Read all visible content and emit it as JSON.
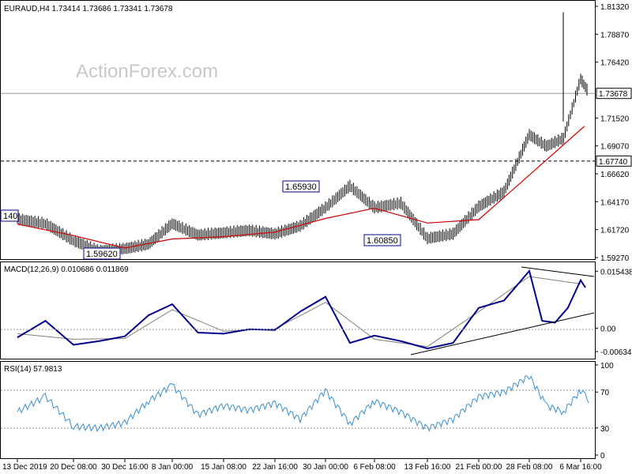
{
  "chart_data": [
    {
      "type": "line",
      "title": "EURAUD,H4  1.73414 1.73686 1.73341 1.73678",
      "symbol": "EURAUD",
      "timeframe": "H4",
      "ohlc": {
        "open": 1.73414,
        "high": 1.73686,
        "low": 1.73341,
        "close": 1.73678
      },
      "ylim": [
        1.5927,
        1.8132
      ],
      "y_ticks": [
        "1.81320",
        "1.78870",
        "1.76420",
        "1.71520",
        "1.69070",
        "1.66620",
        "1.64170",
        "1.61720",
        "1.59270"
      ],
      "current_price_label": "1.73678",
      "current_price": 1.73678,
      "level_label": "1.67740",
      "level": 1.6774,
      "watermark": "ActionForex.com",
      "annotations": [
        {
          "text": "1.65930",
          "x": "30 Jan 00:00",
          "y": 1.6593
        },
        {
          "text": "1.60850",
          "x": "13 Feb 16:00",
          "y": 1.6085
        },
        {
          "text": "1.59620",
          "x": "30 Dec 16:00",
          "y": 1.5962
        },
        {
          "text": "140",
          "x": "13 Dec 2019",
          "y": 1.6314
        }
      ],
      "series": [
        {
          "color": "#000000",
          "x": [
            "13 Dec 2019",
            "16 Dec",
            "20 Dec 08:00",
            "24 Dec",
            "30 Dec 16:00",
            "3 Jan",
            "8 Jan 00:00",
            "12 Jan",
            "15 Jan 08:00",
            "19 Jan",
            "22 Jan 16:00",
            "26 Jan",
            "30 Jan 00:00",
            "3 Feb",
            "6 Feb 08:00",
            "10 Feb",
            "13 Feb 16:00",
            "17 Feb",
            "21 Feb 00:00",
            "25 Feb",
            "28 Feb 08:00",
            "3 Mar",
            "4 Mar",
            "6 Mar 16:00",
            "7 Mar",
            "8 Mar"
          ],
          "values": [
            1.626,
            1.622,
            1.607,
            1.598,
            1.6,
            1.604,
            1.622,
            1.612,
            1.614,
            1.616,
            1.613,
            1.62,
            1.636,
            1.655,
            1.636,
            1.64,
            1.609,
            1.613,
            1.637,
            1.65,
            1.7,
            1.69,
            1.697,
            1.749,
            1.742,
            1.737
          ]
        },
        {
          "color": "#cc0000",
          "x": [
            "13 Dec 2019",
            "20 Dec 08:00",
            "30 Dec 16:00",
            "8 Jan 00:00",
            "15 Jan 08:00",
            "22 Jan 16:00",
            "30 Jan 00:00",
            "6 Feb 08:00",
            "13 Feb 16:00",
            "21 Feb 00:00",
            "28 Feb 08:00",
            "6 Mar 16:00"
          ],
          "values": [
            1.622,
            1.612,
            1.601,
            1.609,
            1.611,
            1.615,
            1.627,
            1.636,
            1.623,
            1.626,
            1.665,
            1.705
          ]
        }
      ]
    },
    {
      "type": "line",
      "title": "MACD(12,26,9) 0.010686 0.011869",
      "ylim": [
        -0.0074,
        0.017
      ],
      "y_ticks": [
        "0.015438",
        "0.00",
        "-0.006347"
      ],
      "series": [
        {
          "color": "#00008b",
          "x": [
            "13 Dec 2019",
            "16 Dec",
            "20 Dec 08:00",
            "24 Dec",
            "30 Dec 16:00",
            "3 Jan",
            "8 Jan 00:00",
            "12 Jan",
            "15 Jan 08:00",
            "19 Jan",
            "22 Jan 16:00",
            "26 Jan",
            "30 Jan 00:00",
            "3 Feb",
            "6 Feb 08:00",
            "10 Feb",
            "13 Feb 16:00",
            "17 Feb",
            "21 Feb 00:00",
            "25 Feb",
            "28 Feb 08:00",
            "2 Mar",
            "4 Mar",
            "5 Mar",
            "6 Mar 16:00",
            "8 Mar"
          ],
          "values": [
            -0.0025,
            0.002,
            -0.0045,
            -0.0035,
            -0.0022,
            0.0035,
            0.0065,
            -0.0012,
            -0.0015,
            -0.0003,
            -0.0005,
            0.0045,
            0.0085,
            -0.004,
            -0.002,
            -0.0035,
            -0.0055,
            -0.004,
            0.0055,
            0.0075,
            0.0155,
            0.002,
            0.0015,
            0.0055,
            0.013,
            0.011
          ]
        },
        {
          "color": "#808080",
          "x": [
            "13 Dec 2019",
            "20 Dec 08:00",
            "30 Dec 16:00",
            "8 Jan 00:00",
            "15 Jan 08:00",
            "22 Jan 16:00",
            "30 Jan 00:00",
            "6 Feb 08:00",
            "13 Feb 16:00",
            "21 Feb 00:00",
            "28 Feb 08:00",
            "6 Mar 16:00"
          ],
          "values": [
            -0.0015,
            -0.003,
            -0.0028,
            0.005,
            -0.0008,
            -0.0002,
            0.007,
            -0.003,
            -0.005,
            0.0045,
            0.014,
            0.012
          ]
        }
      ]
    },
    {
      "type": "line",
      "title": "RSI(14) 57.9813",
      "ylim": [
        0,
        100
      ],
      "y_ticks": [
        "100",
        "70",
        "30",
        "0"
      ],
      "series": [
        {
          "color": "#3a8fd0",
          "x": [
            "13 Dec 2019",
            "16 Dec",
            "20 Dec 08:00",
            "24 Dec",
            "30 Dec 16:00",
            "3 Jan",
            "8 Jan 00:00",
            "12 Jan",
            "15 Jan 08:00",
            "19 Jan",
            "22 Jan 16:00",
            "26 Jan",
            "30 Jan 00:00",
            "3 Feb",
            "6 Feb 08:00",
            "10 Feb",
            "13 Feb 16:00",
            "17 Feb",
            "21 Feb 00:00",
            "25 Feb",
            "28 Feb 08:00",
            "2 Mar",
            "4 Mar",
            "6 Mar 16:00",
            "7 Mar",
            "8 Mar"
          ],
          "values": [
            48,
            65,
            32,
            30,
            36,
            60,
            78,
            45,
            55,
            50,
            58,
            40,
            72,
            35,
            60,
            48,
            30,
            40,
            65,
            70,
            88,
            55,
            48,
            72,
            65,
            58
          ]
        }
      ]
    }
  ],
  "x_axis_labels": [
    "13 Dec 2019",
    "20 Dec 08:00",
    "30 Dec 16:00",
    "8 Jan 00:00",
    "15 Jan 08:00",
    "22 Jan 16:00",
    "30 Jan 00:00",
    "6 Feb 08:00",
    "13 Feb 16:00",
    "21 Feb 00:00",
    "28 Feb 08:00",
    "6 Mar 16:00"
  ]
}
